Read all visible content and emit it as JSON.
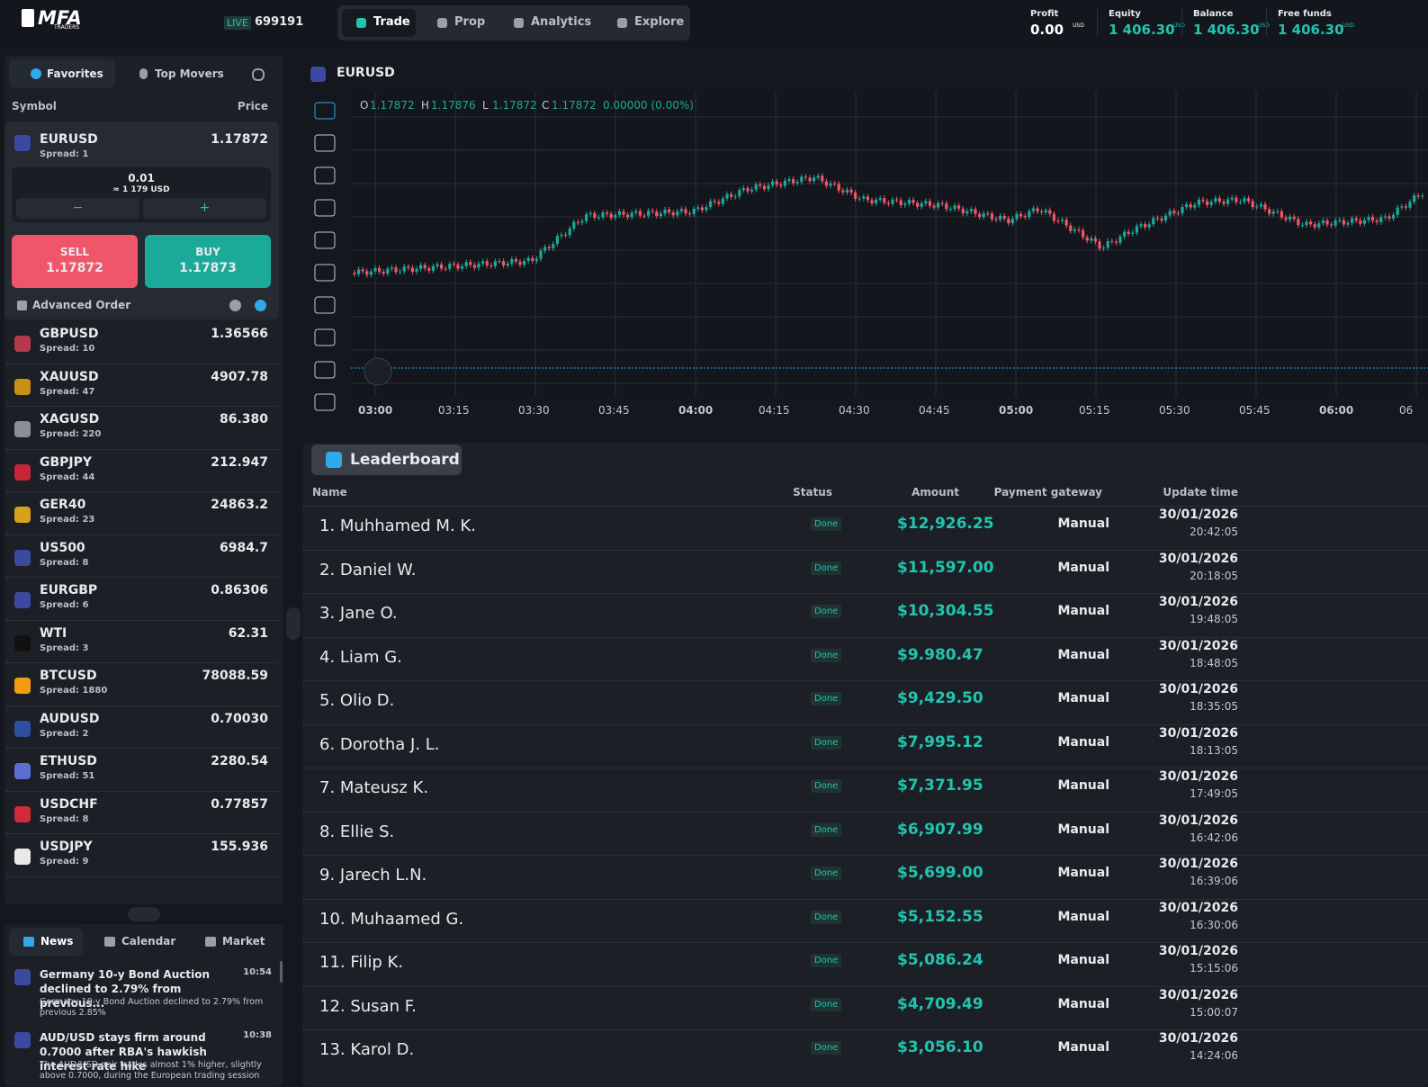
{
  "header": {
    "logo": "MFA",
    "logo_sub": "TRADERS",
    "account_type": "LIVE",
    "account_id": "699191",
    "nav": [
      "Trade",
      "Prop",
      "Analytics",
      "Explore"
    ],
    "stats": [
      {
        "label": "Profit",
        "value": "0.00",
        "unit": "USD"
      },
      {
        "label": "Equity",
        "value": "1 406.30",
        "unit": "USD"
      },
      {
        "label": "Balance",
        "value": "1 406.30",
        "unit": "USD"
      },
      {
        "label": "Free funds",
        "value": "1 406.30",
        "unit": "USD"
      }
    ]
  },
  "sidebar": {
    "tabs": [
      "Favorites",
      "Top Movers"
    ],
    "columns": [
      "Symbol",
      "Price"
    ],
    "selected": {
      "symbol": "EURUSD",
      "spread": "Spread: 1",
      "price": "1.17872",
      "lot": "0.01",
      "lot_value": "≈ 1 179 USD",
      "minus": "−",
      "plus": "+",
      "sell_label": "SELL",
      "sell_price": "1.17872",
      "buy_label": "BUY",
      "buy_price": "1.17873",
      "advanced": "Advanced Order"
    },
    "instruments": [
      {
        "symbol": "GBPUSD",
        "spread": "Spread: 10",
        "price": "1.36566"
      },
      {
        "symbol": "XAUUSD",
        "spread": "Spread: 47",
        "price": "4907.78"
      },
      {
        "symbol": "XAGUSD",
        "spread": "Spread: 220",
        "price": "86.380"
      },
      {
        "symbol": "GBPJPY",
        "spread": "Spread: 44",
        "price": "212.947"
      },
      {
        "symbol": "GER40",
        "spread": "Spread: 23",
        "price": "24863.2"
      },
      {
        "symbol": "US500",
        "spread": "Spread: 8",
        "price": "6984.7"
      },
      {
        "symbol": "EURGBP",
        "spread": "Spread: 6",
        "price": "0.86306"
      },
      {
        "symbol": "WTI",
        "spread": "Spread: 3",
        "price": "62.31"
      },
      {
        "symbol": "BTCUSD",
        "spread": "Spread: 1880",
        "price": "78088.59"
      },
      {
        "symbol": "AUDUSD",
        "spread": "Spread: 2",
        "price": "0.70030"
      },
      {
        "symbol": "ETHUSD",
        "spread": "Spread: 51",
        "price": "2280.54"
      },
      {
        "symbol": "USDCHF",
        "spread": "Spread: 8",
        "price": "0.77857"
      },
      {
        "symbol": "USDJPY",
        "spread": "Spread: 9",
        "price": "155.936"
      }
    ]
  },
  "news": {
    "tabs": [
      "News",
      "Calendar",
      "Market"
    ],
    "items": [
      {
        "title": "Germany 10-y Bond Auction declined to 2.79% from previous...",
        "time": "10:54",
        "summary": "Germany 10-y Bond Auction declined to 2.79% from previous 2.85%"
      },
      {
        "title": "AUD/USD stays firm around 0.7000 after RBA's hawkish interest rate hike",
        "time": "10:38",
        "summary": "The AUD/USD pair trades almost 1% higher, slightly above 0.7000, during the European trading session"
      }
    ]
  },
  "chart": {
    "symbol": "EURUSD",
    "ohlc": [
      {
        "key": "O",
        "value": "1.17872"
      },
      {
        "key": "H",
        "value": "1.17876"
      },
      {
        "key": "L",
        "value": "1.17872"
      },
      {
        "key": "C",
        "value": "1.17872"
      }
    ],
    "change": "0.00000 (0.00%)",
    "times": [
      "03:00",
      "03:15",
      "03:30",
      "03:45",
      "04:00",
      "04:15",
      "04:30",
      "04:45",
      "05:00",
      "05:15",
      "05:30",
      "05:45",
      "06:00",
      "06"
    ]
  },
  "leaderboard": {
    "title": "Leaderboard",
    "columns": [
      "Name",
      "Status",
      "Amount",
      "Payment gateway",
      "Update time"
    ],
    "rows": [
      [
        "1. Muhhamed M. K.",
        "Done",
        "$12,926.25",
        "Manual",
        "30/01/2026",
        "20:42:05"
      ],
      [
        "2. Daniel W.",
        "Done",
        "$11,597.00",
        "Manual",
        "30/01/2026",
        "20:18:05"
      ],
      [
        "3. Jane O.",
        "Done",
        "$10,304.55",
        "Manual",
        "30/01/2026",
        "19:48:05"
      ],
      [
        "4. Liam G.",
        "Done",
        "$9.980.47",
        "Manual",
        "30/01/2026",
        "18:48:05"
      ],
      [
        "5. Olio D.",
        "Done",
        "$9,429.50",
        "Manual",
        "30/01/2026",
        "18:35:05"
      ],
      [
        "6. Dorotha J. L.",
        "Done",
        "$7,995.12",
        "Manual",
        "30/01/2026",
        "18:13:05"
      ],
      [
        "7. Mateusz K.",
        "Done",
        "$7,371.95",
        "Manual",
        "30/01/2026",
        "17:49:05"
      ],
      [
        "8. Ellie S.",
        "Done",
        "$6,907.99",
        "Manual",
        "30/01/2026",
        "16:42:06"
      ],
      [
        "9. Jarech L.N.",
        "Done",
        "$5,699.00",
        "Manual",
        "30/01/2026",
        "16:39:06"
      ],
      [
        "10. Muhaamed G.",
        "Done",
        "$5,152.55",
        "Manual",
        "30/01/2026",
        "16:30:06"
      ],
      [
        "11. Filip K.",
        "Done",
        "$5,086.24",
        "Manual",
        "30/01/2026",
        "15:15:06"
      ],
      [
        "12. Susan F.",
        "Done",
        "$4,709.49",
        "Manual",
        "30/01/2026",
        "15:00:07"
      ],
      [
        "13. Karol D.",
        "Done",
        "$3,056.10",
        "Manual",
        "30/01/2026",
        "14:24:06"
      ]
    ]
  }
}
